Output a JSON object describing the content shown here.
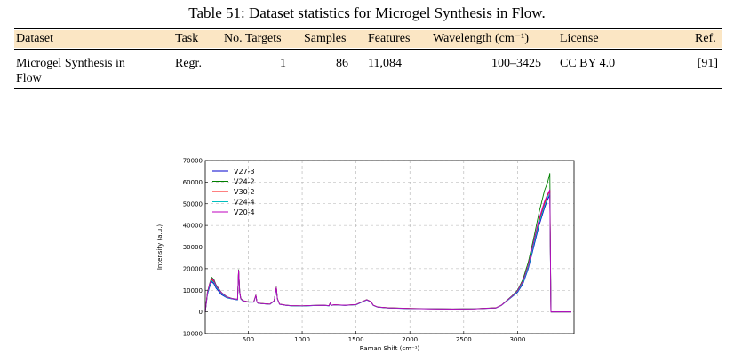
{
  "caption": "Table 51: Dataset statistics for Microgel Synthesis in Flow.",
  "table": {
    "headers": [
      "Dataset",
      "Task",
      "No. Targets",
      "Samples",
      "Features",
      "Wavelength (cm⁻¹)",
      "License",
      "Ref."
    ],
    "row": {
      "dataset_line1": "Microgel Synthesis in",
      "dataset_line2": "Flow",
      "task": "Regr.",
      "targets": "1",
      "samples": "86",
      "features": "11,084",
      "wavelength": "100–3425",
      "license": "CC BY 4.0",
      "ref": "[91]"
    }
  },
  "chart_data": {
    "type": "line",
    "xlabel": "Raman Shift (cm⁻¹)",
    "ylabel": "Intensity (a.u.)",
    "xlim": [
      100,
      3525
    ],
    "ylim": [
      -10000,
      70000
    ],
    "xticks": [
      500,
      1000,
      1500,
      2000,
      2500,
      3000
    ],
    "yticks": [
      -10000,
      0,
      10000,
      20000,
      30000,
      40000,
      50000,
      60000,
      70000
    ],
    "grid": true,
    "legend_position": "top-left",
    "x": [
      100,
      120,
      140,
      160,
      180,
      200,
      250,
      300,
      350,
      400,
      410,
      420,
      430,
      450,
      500,
      550,
      570,
      580,
      590,
      620,
      700,
      740,
      760,
      770,
      790,
      850,
      900,
      1000,
      1100,
      1200,
      1250,
      1260,
      1270,
      1300,
      1400,
      1500,
      1600,
      1640,
      1660,
      1700,
      1800,
      2000,
      2200,
      2400,
      2600,
      2800,
      2850,
      2900,
      2950,
      3000,
      3050,
      3100,
      3150,
      3200,
      3250,
      3280,
      3300,
      3310,
      3320,
      3340,
      3400,
      3500
    ],
    "series": [
      {
        "name": "V27-3",
        "color": "#0000cc",
        "values": [
          0,
          8000,
          11500,
          14000,
          13000,
          11000,
          8000,
          6500,
          6000,
          5500,
          19000,
          9000,
          6000,
          5000,
          4500,
          4500,
          7500,
          4500,
          4000,
          3800,
          3500,
          5000,
          11000,
          6000,
          3500,
          3000,
          2800,
          2700,
          2900,
          3000,
          2800,
          4000,
          3000,
          3200,
          3000,
          3300,
          5500,
          4500,
          3000,
          2200,
          1800,
          1500,
          1400,
          1300,
          1400,
          1800,
          3000,
          5000,
          7000,
          9000,
          13000,
          20000,
          30000,
          40000,
          48000,
          52000,
          54000,
          0,
          0,
          0,
          0,
          0
        ]
      },
      {
        "name": "V24-2",
        "color": "#008000",
        "values": [
          0,
          9000,
          13000,
          16000,
          15000,
          12500,
          9000,
          7000,
          6200,
          5800,
          19500,
          9500,
          6300,
          5200,
          4700,
          4600,
          7800,
          4600,
          4100,
          3900,
          3600,
          5200,
          11500,
          6200,
          3600,
          3100,
          2900,
          2800,
          3000,
          3100,
          2900,
          4100,
          3100,
          3300,
          3100,
          3400,
          5700,
          4700,
          3100,
          2300,
          1900,
          1600,
          1450,
          1350,
          1450,
          1900,
          3100,
          5300,
          7500,
          10000,
          15000,
          23000,
          34000,
          46000,
          56000,
          60000,
          64000,
          0,
          0,
          0,
          0,
          0
        ]
      },
      {
        "name": "V30-2",
        "color": "#ff0000",
        "values": [
          0,
          8500,
          12500,
          15000,
          14000,
          12000,
          8800,
          6800,
          6100,
          5700,
          19200,
          9200,
          6100,
          5100,
          4600,
          4550,
          7600,
          4550,
          4050,
          3850,
          3550,
          5100,
          11200,
          6100,
          3550,
          3050,
          2850,
          2750,
          2950,
          3050,
          2850,
          4050,
          3050,
          3250,
          3050,
          3350,
          5600,
          4600,
          3050,
          2250,
          1850,
          1550,
          1420,
          1320,
          1420,
          1850,
          3050,
          5100,
          7200,
          9500,
          14000,
          21000,
          32000,
          42000,
          50000,
          54000,
          56000,
          0,
          0,
          0,
          0,
          0
        ]
      },
      {
        "name": "V24-4",
        "color": "#00bfbf",
        "values": [
          0,
          8200,
          12000,
          14500,
          13500,
          11500,
          8500,
          6600,
          6050,
          5600,
          19100,
          9100,
          6050,
          5050,
          4550,
          4520,
          7550,
          4520,
          4020,
          3820,
          3520,
          5050,
          11100,
          6050,
          3520,
          3020,
          2820,
          2720,
          2920,
          3020,
          2820,
          4020,
          3020,
          3220,
          3020,
          3320,
          5550,
          4550,
          3020,
          2220,
          1820,
          1520,
          1410,
          1310,
          1410,
          1820,
          3020,
          5050,
          7100,
          9300,
          13500,
          20500,
          31000,
          41000,
          49000,
          53000,
          55000,
          0,
          0,
          0,
          0,
          0
        ]
      },
      {
        "name": "V20-4",
        "color": "#bf00bf",
        "values": [
          0,
          8800,
          12800,
          15500,
          14500,
          12200,
          8900,
          6900,
          6150,
          5750,
          19300,
          9300,
          6150,
          5150,
          4650,
          4580,
          7700,
          4580,
          4080,
          3880,
          3580,
          5150,
          11300,
          6150,
          3580,
          3080,
          2880,
          2780,
          2980,
          3080,
          2880,
          4080,
          3080,
          3280,
          3080,
          3380,
          5650,
          4650,
          3080,
          2280,
          1880,
          1580,
          1430,
          1330,
          1430,
          1880,
          3080,
          5200,
          7300,
          9700,
          14300,
          21500,
          32500,
          43000,
          51000,
          54500,
          56500,
          0,
          0,
          0,
          0,
          0
        ]
      }
    ]
  }
}
